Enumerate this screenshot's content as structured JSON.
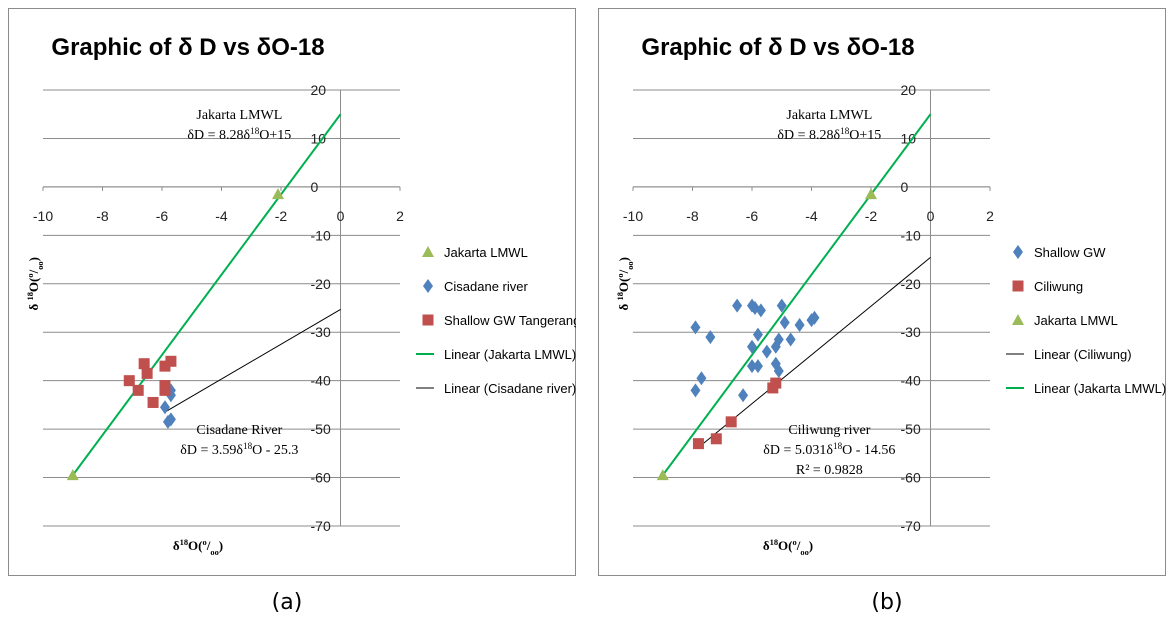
{
  "captions": [
    "(a)",
    "(b)"
  ],
  "chart_data": [
    {
      "type": "scatter",
      "title": "Graphic of δ D vs δO-18",
      "xlabel": "δ18O(o/oo)",
      "ylabel": "δ 18O(o/oo)",
      "xlim": [
        -10,
        2
      ],
      "ylim": [
        -70,
        20
      ],
      "xticks": [
        -10,
        -8,
        -6,
        -4,
        -2,
        0,
        2
      ],
      "yticks": [
        20,
        10,
        0,
        -10,
        -20,
        -30,
        -40,
        -50,
        -60,
        -70
      ],
      "grid": "horizontal",
      "legend_position": "right",
      "series": [
        {
          "name": "Jakarta LMWL",
          "marker": "triangle",
          "color": "#9bbb59",
          "x": [
            -2.1,
            -9.0
          ],
          "y": [
            -1.5,
            -59.5
          ]
        },
        {
          "name": "Cisadane river",
          "marker": "diamond",
          "color": "#4f81bd",
          "x": [
            -5.7,
            -5.7,
            -5.9,
            -5.7,
            -5.8
          ],
          "y": [
            -42,
            -43,
            -45.5,
            -48,
            -48.5
          ]
        },
        {
          "name": "Shallow GW Tangerang",
          "marker": "square",
          "color": "#c0504d",
          "x": [
            -7.1,
            -6.8,
            -6.6,
            -6.5,
            -6.3,
            -5.9,
            -5.9,
            -5.9,
            -5.7
          ],
          "y": [
            -40,
            -42,
            -36.5,
            -38.5,
            -44.5,
            -37,
            -41,
            -42,
            -36
          ]
        }
      ],
      "trendlines": [
        {
          "name": "Linear (Jakarta LMWL)",
          "color": "#00b050",
          "slope": 8.28,
          "intercept": 15,
          "x_range": [
            -9,
            0
          ]
        },
        {
          "name": "Linear (Cisadane river)",
          "color": "#000000",
          "slope": 3.59,
          "intercept": -25.3,
          "x_range": [
            -5.9,
            0
          ]
        }
      ],
      "annotations": [
        {
          "lines": [
            "Jakarta LMWL",
            "δD = 8.28δ18O+15"
          ],
          "x": -3.4,
          "y": 14
        },
        {
          "lines": [
            "Cisadane River",
            "δD = 3.59δ18O - 25.3"
          ],
          "x": -3.4,
          "y": -51
        }
      ],
      "legend_labels": [
        "Jakarta LMWL",
        "Cisadane river",
        "Shallow GW Tangerang",
        "Linear (Jakarta LMWL)",
        "Linear (Cisadane river)"
      ]
    },
    {
      "type": "scatter",
      "title": "Graphic of δ D vs δO-18",
      "xlabel": "δ18O(o/oo)",
      "ylabel": "δ 18O(o/oo)",
      "xlim": [
        -10,
        2
      ],
      "ylim": [
        -70,
        20
      ],
      "xticks": [
        -10,
        -8,
        -6,
        -4,
        -2,
        0,
        2
      ],
      "yticks": [
        20,
        10,
        0,
        -10,
        -20,
        -30,
        -40,
        -50,
        -60,
        -70
      ],
      "grid": "horizontal",
      "legend_position": "right",
      "series": [
        {
          "name": "Shallow GW",
          "marker": "diamond",
          "color": "#4f81bd",
          "x": [
            -7.9,
            -7.7,
            -7.4,
            -7.9,
            -6.5,
            -6.3,
            -6.0,
            -5.9,
            -5.8,
            -5.7,
            -6.0,
            -6.0,
            -5.8,
            -5.5,
            -5.2,
            -5.1,
            -5.0,
            -4.9,
            -4.7,
            -4.4,
            -4.0,
            -3.9,
            -5.2,
            -5.1
          ],
          "y": [
            -29,
            -39.5,
            -31,
            -42,
            -24.5,
            -43,
            -24.5,
            -25,
            -30.5,
            -25.5,
            -33,
            -37,
            -37,
            -34,
            -36.5,
            -31.5,
            -24.5,
            -28,
            -31.5,
            -28.5,
            -27.5,
            -27,
            -33,
            -38
          ]
        },
        {
          "name": "Ciliwung",
          "marker": "square",
          "color": "#c0504d",
          "x": [
            -7.8,
            -7.2,
            -6.7,
            -5.3,
            -5.2
          ],
          "y": [
            -53,
            -52,
            -48.5,
            -41.5,
            -40.5
          ]
        },
        {
          "name": "Jakarta LMWL",
          "marker": "triangle",
          "color": "#9bbb59",
          "x": [
            -2.0,
            -9.0
          ],
          "y": [
            -1.5,
            -59.5
          ]
        }
      ],
      "trendlines": [
        {
          "name": "Linear (Ciliwung)",
          "color": "#000000",
          "slope": 5.031,
          "intercept": -14.56,
          "x_range": [
            -7.8,
            0
          ]
        },
        {
          "name": "Linear (Jakarta LMWL)",
          "color": "#00b050",
          "slope": 8.28,
          "intercept": 15,
          "x_range": [
            -9,
            0
          ]
        }
      ],
      "annotations": [
        {
          "lines": [
            "Jakarta LMWL",
            "δD = 8.28δ18O+15"
          ],
          "x": -3.4,
          "y": 14
        },
        {
          "lines": [
            "Ciliwung river",
            "δD = 5.031δ18O - 14.56",
            "R² = 0.9828"
          ],
          "x": -3.4,
          "y": -51
        }
      ],
      "legend_labels": [
        "Shallow GW",
        "Ciliwung",
        "Jakarta LMWL",
        "Linear (Ciliwung)",
        "Linear (Jakarta LMWL)"
      ]
    }
  ]
}
